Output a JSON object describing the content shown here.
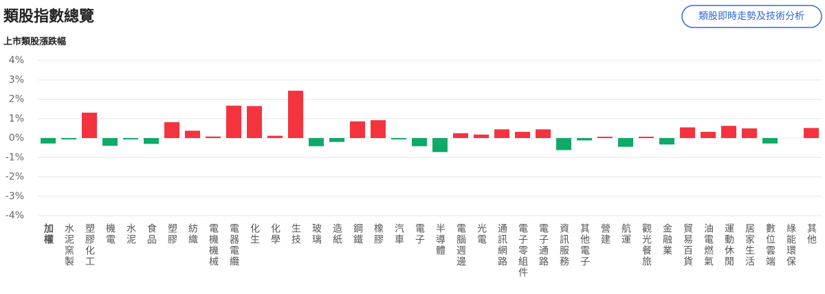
{
  "header": {
    "title": "類股指數總覽",
    "button": "類股即時走勢及技術分析"
  },
  "chart_data": {
    "type": "bar",
    "title": "上市類股漲跌幅",
    "categories": [
      "加權",
      "水泥窯製",
      "塑膠化工",
      "機電",
      "水泥",
      "食品",
      "塑膠",
      "紡織",
      "電機機械",
      "電器電纜",
      "化生",
      "化學",
      "生技",
      "玻璃",
      "造紙",
      "鋼鐵",
      "橡膠",
      "汽車",
      "電子",
      "半導體",
      "電腦週邊",
      "光電",
      "通訊網路",
      "電子零組件",
      "電子通路",
      "資訊服務",
      "其他電子",
      "營建",
      "航運",
      "觀光餐旅",
      "金融業",
      "貿易百貨",
      "油電燃氣",
      "運動休閒",
      "居家生活",
      "數位雲端",
      "綠能環保",
      "其他"
    ],
    "values": [
      -0.28,
      -0.07,
      1.31,
      -0.4,
      -0.07,
      -0.3,
      0.82,
      0.38,
      0.08,
      1.67,
      1.65,
      0.12,
      2.44,
      -0.42,
      -0.2,
      0.86,
      0.92,
      -0.07,
      -0.42,
      -0.72,
      0.25,
      0.18,
      0.45,
      0.32,
      0.45,
      -0.62,
      -0.12,
      0.07,
      -0.45,
      0.07,
      -0.33,
      0.55,
      0.32,
      0.63,
      0.5,
      -0.28,
      0,
      0.52
    ],
    "up_color": "#f5333f",
    "down_color": "#0fa968",
    "ylim": [
      -4,
      4
    ],
    "yticks": [
      {
        "value": 4,
        "label": "4%"
      },
      {
        "value": 3,
        "label": "3%"
      },
      {
        "value": 2,
        "label": "2%"
      },
      {
        "value": 1,
        "label": "1%"
      },
      {
        "value": 0,
        "label": "0%"
      },
      {
        "value": -1,
        "label": "-1%"
      },
      {
        "value": -2,
        "label": "-2%"
      },
      {
        "value": -3,
        "label": "-3%"
      },
      {
        "value": -4,
        "label": "-4%"
      }
    ],
    "grid": true
  }
}
